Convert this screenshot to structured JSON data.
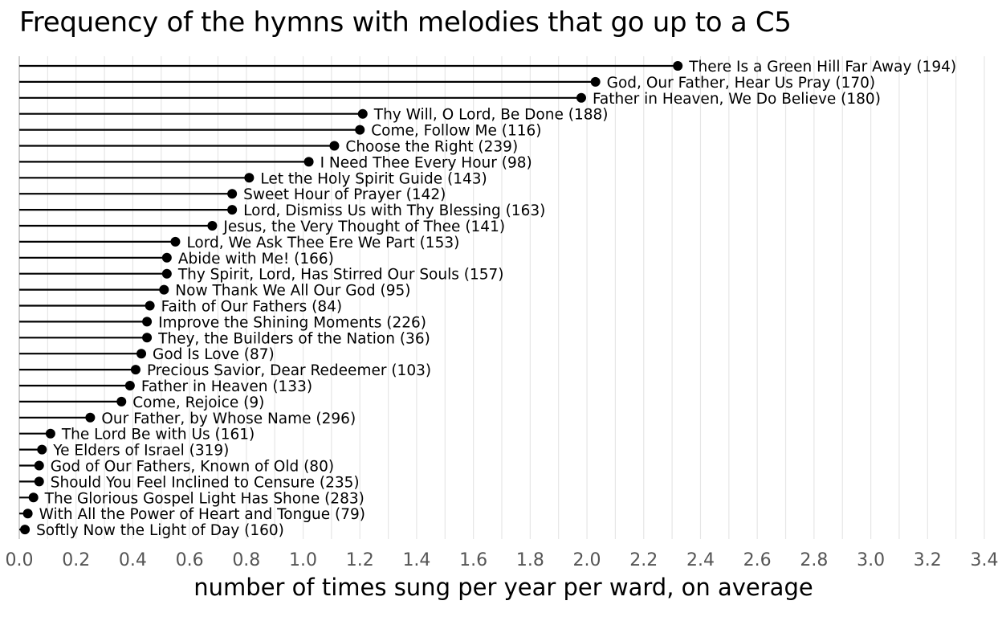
{
  "chart_data": {
    "type": "lollipop",
    "title": "Frequency of the hymns with melodies that go up to a C5",
    "xlabel": "number of times sung per year per ward, on average",
    "ylabel": "",
    "xlim": [
      0,
      3.4
    ],
    "x_ticks": [
      "0.0",
      "0.2",
      "0.4",
      "0.6",
      "0.8",
      "1.0",
      "1.2",
      "1.4",
      "1.6",
      "1.8",
      "2.0",
      "2.2",
      "2.4",
      "2.6",
      "2.8",
      "3.0",
      "3.2",
      "3.4"
    ],
    "grid": true,
    "points": [
      {
        "label": "There Is a Green Hill Far Away (194)",
        "value": 2.32
      },
      {
        "label": "God, Our Father, Hear Us Pray (170)",
        "value": 2.03
      },
      {
        "label": "Father in Heaven, We Do Believe (180)",
        "value": 1.98
      },
      {
        "label": "Thy Will, O Lord, Be Done (188)",
        "value": 1.21
      },
      {
        "label": "Come, Follow Me (116)",
        "value": 1.2
      },
      {
        "label": "Choose the Right (239)",
        "value": 1.11
      },
      {
        "label": "I Need Thee Every Hour (98)",
        "value": 1.02
      },
      {
        "label": "Let the Holy Spirit Guide (143)",
        "value": 0.81
      },
      {
        "label": "Sweet Hour of Prayer (142)",
        "value": 0.75
      },
      {
        "label": "Lord, Dismiss Us with Thy Blessing (163)",
        "value": 0.75
      },
      {
        "label": "Jesus, the Very Thought of Thee (141)",
        "value": 0.68
      },
      {
        "label": "Lord, We Ask Thee Ere We Part (153)",
        "value": 0.55
      },
      {
        "label": "Abide with Me! (166)",
        "value": 0.52
      },
      {
        "label": "Thy Spirit, Lord, Has Stirred Our Souls (157)",
        "value": 0.52
      },
      {
        "label": "Now Thank We All Our God (95)",
        "value": 0.51
      },
      {
        "label": "Faith of Our Fathers (84)",
        "value": 0.46
      },
      {
        "label": "Improve the Shining Moments (226)",
        "value": 0.45
      },
      {
        "label": "They, the Builders of the Nation (36)",
        "value": 0.45
      },
      {
        "label": "God Is Love (87)",
        "value": 0.43
      },
      {
        "label": "Precious Savior, Dear Redeemer (103)",
        "value": 0.41
      },
      {
        "label": "Father in Heaven (133)",
        "value": 0.39
      },
      {
        "label": "Come, Rejoice (9)",
        "value": 0.36
      },
      {
        "label": "Our Father, by Whose Name (296)",
        "value": 0.25
      },
      {
        "label": "The Lord Be with Us (161)",
        "value": 0.11
      },
      {
        "label": "Ye Elders of Israel (319)",
        "value": 0.08
      },
      {
        "label": "God of Our Fathers, Known of Old (80)",
        "value": 0.07
      },
      {
        "label": "Should You Feel Inclined to Censure (235)",
        "value": 0.07
      },
      {
        "label": "The Glorious Gospel Light Has Shone (283)",
        "value": 0.05
      },
      {
        "label": "With All the Power of Heart and Tongue (79)",
        "value": 0.03
      },
      {
        "label": "Softly Now the Light of Day (160)",
        "value": 0.02
      }
    ]
  }
}
